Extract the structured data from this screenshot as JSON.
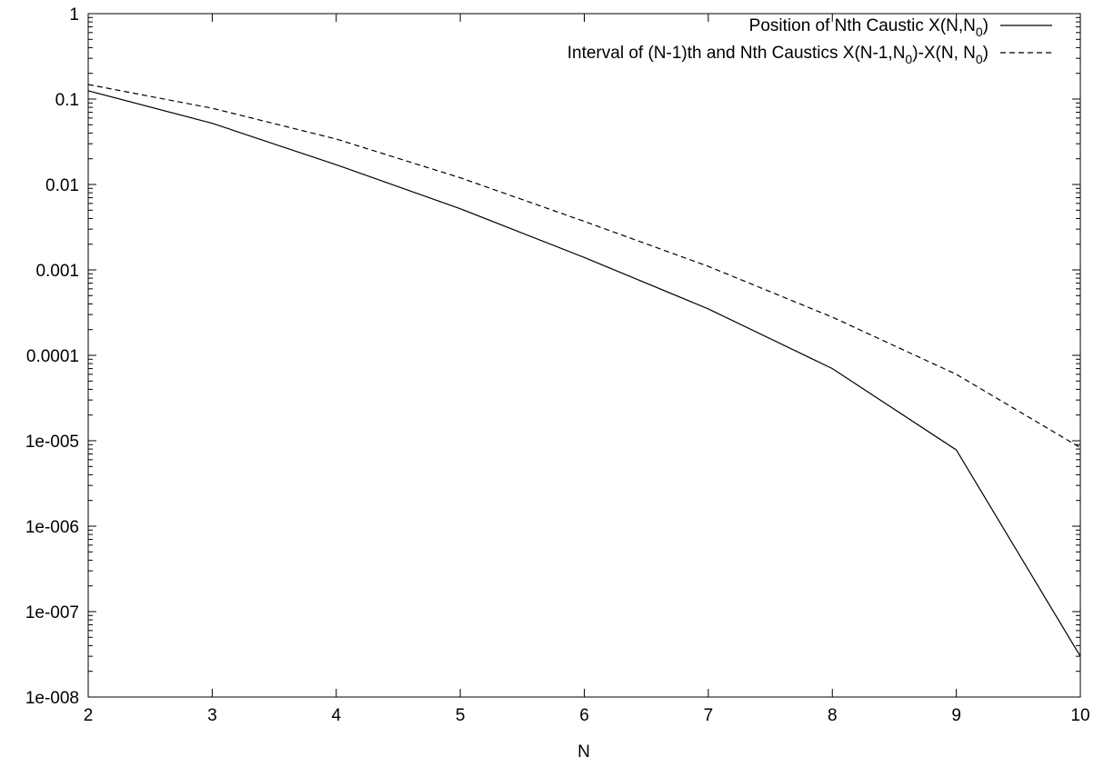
{
  "chart_data": {
    "type": "line",
    "title": "",
    "xlabel": "N",
    "ylabel": "",
    "x_scale": "linear",
    "y_scale": "log",
    "xlim": [
      2,
      10
    ],
    "ylim": [
      1e-08,
      1
    ],
    "grid": false,
    "legend_position": "top-right",
    "x_ticks": [
      2,
      3,
      4,
      5,
      6,
      7,
      8,
      9,
      10
    ],
    "x_tick_labels": [
      "2",
      "3",
      "4",
      "5",
      "6",
      "7",
      "8",
      "9",
      "10"
    ],
    "y_ticks": [
      1e-08,
      1e-07,
      1e-06,
      1e-05,
      0.0001,
      0.001,
      0.01,
      0.1,
      1
    ],
    "y_tick_labels": [
      "1e-008",
      "1e-007",
      "1e-006",
      "1e-005",
      "0.0001",
      "0.001",
      "0.01",
      "0.1",
      "1"
    ],
    "x": [
      2,
      3,
      4,
      5,
      6,
      7,
      8,
      9,
      10
    ],
    "series": [
      {
        "name_parts": [
          "Position of Nth Caustic X(N,N",
          "0",
          ")"
        ],
        "style": "solid",
        "color": "#000000",
        "values": [
          0.125,
          0.052,
          0.017,
          0.0052,
          0.0014,
          0.00035,
          7e-05,
          7.8e-06,
          3e-08
        ]
      },
      {
        "name_parts": [
          "Interval of (N-1)th and Nth Caustics X(N-1,N",
          "0",
          ")-X(N, N",
          "0",
          ")"
        ],
        "style": "dashed",
        "color": "#000000",
        "values": [
          0.148,
          0.078,
          0.034,
          0.012,
          0.0037,
          0.0011,
          0.00028,
          6e-05,
          8.3e-06
        ]
      }
    ]
  }
}
